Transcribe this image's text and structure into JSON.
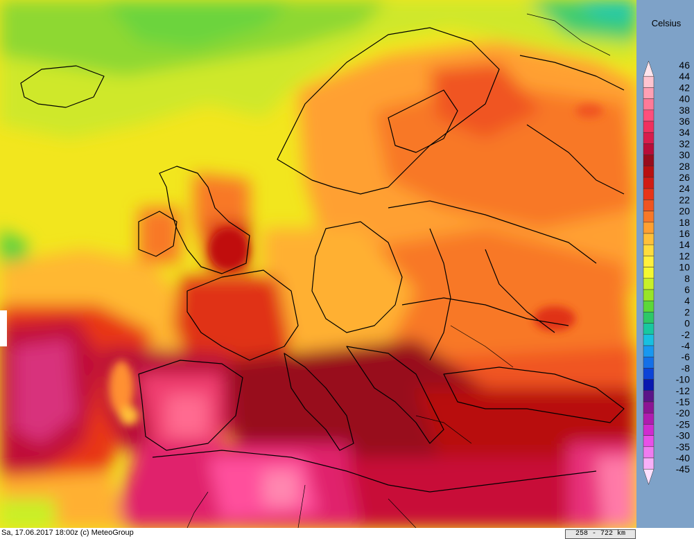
{
  "legend": {
    "unit": "Celsius",
    "entries": [
      {
        "label": "46",
        "color": "#ffe4ec"
      },
      {
        "label": "44",
        "color": "#ffc4d0"
      },
      {
        "label": "42",
        "color": "#ffa0b4"
      },
      {
        "label": "40",
        "color": "#ff7a98"
      },
      {
        "label": "38",
        "color": "#ff4f7c"
      },
      {
        "label": "36",
        "color": "#f0305e"
      },
      {
        "label": "34",
        "color": "#d81c4c"
      },
      {
        "label": "32",
        "color": "#b80c38"
      },
      {
        "label": "30",
        "color": "#980c1c"
      },
      {
        "label": "28",
        "color": "#b81010"
      },
      {
        "label": "26",
        "color": "#d01c14"
      },
      {
        "label": "24",
        "color": "#e83418"
      },
      {
        "label": "22",
        "color": "#f05420"
      },
      {
        "label": "20",
        "color": "#f87828"
      },
      {
        "label": "18",
        "color": "#ffa030"
      },
      {
        "label": "16",
        "color": "#ffc038"
      },
      {
        "label": "14",
        "color": "#ffdc3c"
      },
      {
        "label": "12",
        "color": "#fff03c"
      },
      {
        "label": "10",
        "color": "#f4f830"
      },
      {
        "label": "8",
        "color": "#c8f028"
      },
      {
        "label": "6",
        "color": "#98e428"
      },
      {
        "label": "4",
        "color": "#5cd838"
      },
      {
        "label": "2",
        "color": "#2cc868"
      },
      {
        "label": "0",
        "color": "#18c8a0"
      },
      {
        "label": "-2",
        "color": "#18c0e0"
      },
      {
        "label": "-4",
        "color": "#1898f0"
      },
      {
        "label": "-6",
        "color": "#1470e8"
      },
      {
        "label": "-8",
        "color": "#0c44d8"
      },
      {
        "label": "-10",
        "color": "#0818b0"
      },
      {
        "label": "-12",
        "color": "#5a1488"
      },
      {
        "label": "-15",
        "color": "#8c1494"
      },
      {
        "label": "-20",
        "color": "#b01cb0"
      },
      {
        "label": "-25",
        "color": "#d02cd0"
      },
      {
        "label": "-30",
        "color": "#e850e8"
      },
      {
        "label": "-35",
        "color": "#f07cf0"
      },
      {
        "label": "-40",
        "color": "#f8b0f8"
      },
      {
        "label": "-45",
        "color": "#ffe0ff"
      }
    ]
  },
  "footer": {
    "timestamp": "Sa, 17.06.2017 18:00z (c) MeteoGroup",
    "distance": "258 - 722 km"
  }
}
